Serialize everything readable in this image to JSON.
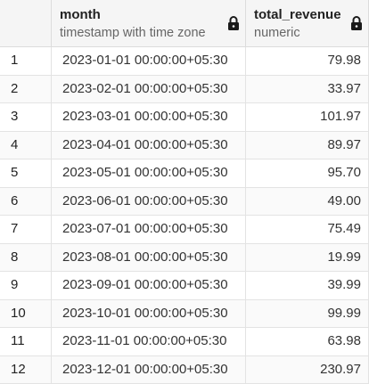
{
  "columns": [
    {
      "name": "month",
      "type": "timestamp with time zone",
      "icon": "lock-icon"
    },
    {
      "name": "total_revenue",
      "type": "numeric",
      "icon": "lock-icon"
    }
  ],
  "rows": [
    {
      "index": "1",
      "month": "2023-01-01 00:00:00+05:30",
      "total_revenue": "79.98"
    },
    {
      "index": "2",
      "month": "2023-02-01 00:00:00+05:30",
      "total_revenue": "33.97"
    },
    {
      "index": "3",
      "month": "2023-03-01 00:00:00+05:30",
      "total_revenue": "101.97"
    },
    {
      "index": "4",
      "month": "2023-04-01 00:00:00+05:30",
      "total_revenue": "89.97"
    },
    {
      "index": "5",
      "month": "2023-05-01 00:00:00+05:30",
      "total_revenue": "95.70"
    },
    {
      "index": "6",
      "month": "2023-06-01 00:00:00+05:30",
      "total_revenue": "49.00"
    },
    {
      "index": "7",
      "month": "2023-07-01 00:00:00+05:30",
      "total_revenue": "75.49"
    },
    {
      "index": "8",
      "month": "2023-08-01 00:00:00+05:30",
      "total_revenue": "19.99"
    },
    {
      "index": "9",
      "month": "2023-09-01 00:00:00+05:30",
      "total_revenue": "39.99"
    },
    {
      "index": "10",
      "month": "2023-10-01 00:00:00+05:30",
      "total_revenue": "99.99"
    },
    {
      "index": "11",
      "month": "2023-11-01 00:00:00+05:30",
      "total_revenue": "63.98"
    },
    {
      "index": "12",
      "month": "2023-12-01 00:00:00+05:30",
      "total_revenue": "230.97"
    }
  ]
}
